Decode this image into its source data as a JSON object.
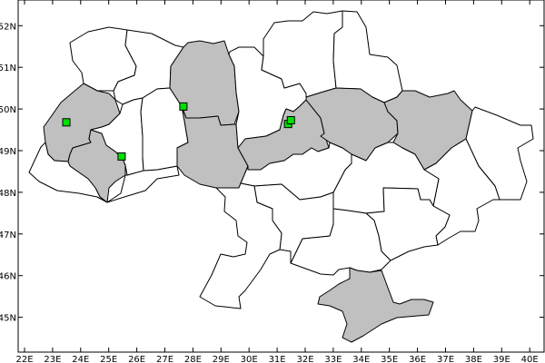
{
  "map": {
    "lon_range": [
      22,
      40
    ],
    "lat_range": [
      45,
      52
    ],
    "x_tick_labels": [
      "22E",
      "23E",
      "24E",
      "25E",
      "26E",
      "27E",
      "28E",
      "29E",
      "30E",
      "31E",
      "32E",
      "33E",
      "34E",
      "35E",
      "36E",
      "37E",
      "38E",
      "39E",
      "40E"
    ],
    "y_tick_labels": [
      "45N",
      "46N",
      "47N",
      "48N",
      "49N",
      "50N",
      "51N",
      "52N"
    ],
    "colors": {
      "highlighted_region": "#c0c0c0",
      "region": "#ffffff",
      "border": "#000000",
      "marker": "#00e000"
    },
    "markers": [
      {
        "lon": 23.49,
        "lat": 49.68
      },
      {
        "lon": 25.46,
        "lat": 48.86
      },
      {
        "lon": 27.66,
        "lat": 50.06
      },
      {
        "lon": 31.39,
        "lat": 49.64
      },
      {
        "lon": 31.49,
        "lat": 49.73
      }
    ]
  }
}
